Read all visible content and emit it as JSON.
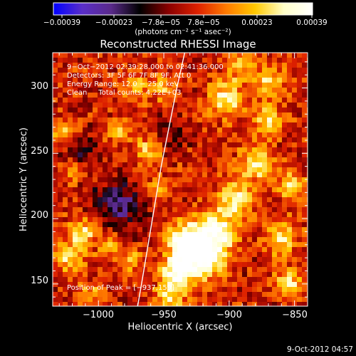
{
  "chart_data": {
    "type": "heatmap",
    "title": "Reconstructed RHESSI Image",
    "xlabel": "Heliocentric X (arcsec)",
    "ylabel": "Heliocentric Y (arcsec)",
    "xlim": [
      -1035,
      -840
    ],
    "ylim": [
      133,
      327
    ],
    "x_ticks": [
      -1000,
      -950,
      -900,
      -850
    ],
    "x_tick_labels": [
      "−1000",
      "−950",
      "−900",
      "−850"
    ],
    "y_ticks": [
      150,
      200,
      250,
      300
    ],
    "y_tick_labels": [
      "150",
      "200",
      "250",
      "300"
    ],
    "colorbar": {
      "range": [
        -0.00039,
        0.00039
      ],
      "tick_labels": [
        "−0.00039",
        "−0.00023",
        "−7.8e−05",
        "7.8e−05",
        "0.00023",
        "0.00039"
      ],
      "unit_label": "(photons cm⁻² s⁻¹ asec⁻²)",
      "colormap": [
        "#0000ff",
        "#5a2ec8",
        "#5a2a8a",
        "#000000",
        "#8a0000",
        "#dd2000",
        "#ff7a00",
        "#ffc800",
        "#ffffc8",
        "#ffffff"
      ]
    },
    "annotations": [
      "9−Oct−2012 02:39:28.000 to 02:41:36.000",
      "Detectors: 3F 5F 6F 7F 8F 9F, Att 0",
      "Energy Range: 12.0 − 25.0 keV",
      "Clean     Total counts: 4.22E+03",
      "Position of Peak = [−937,159]"
    ],
    "peak_position": [
      -937,
      159
    ],
    "limb_curve": [
      [
        -934,
        327
      ],
      [
        -940,
        300
      ],
      [
        -946,
        270
      ],
      [
        -952,
        240
      ],
      [
        -957,
        210
      ],
      [
        -962,
        180
      ],
      [
        -967,
        150
      ],
      [
        -970,
        133
      ]
    ],
    "bright_sources": [
      {
        "x": -922,
        "y": 170,
        "intensity": 1.0,
        "spread": 12
      },
      {
        "x": -940,
        "y": 160,
        "intensity": 0.9,
        "spread": 8
      },
      {
        "x": -910,
        "y": 190,
        "intensity": 0.85,
        "spread": 11
      },
      {
        "x": -935,
        "y": 185,
        "intensity": 0.75,
        "spread": 9
      },
      {
        "x": -895,
        "y": 215,
        "intensity": 0.7,
        "spread": 9
      },
      {
        "x": -880,
        "y": 242,
        "intensity": 0.65,
        "spread": 9
      },
      {
        "x": -870,
        "y": 275,
        "intensity": 0.6,
        "spread": 8
      },
      {
        "x": -868,
        "y": 305,
        "intensity": 0.55,
        "spread": 8
      },
      {
        "x": -902,
        "y": 292,
        "intensity": 0.6,
        "spread": 10
      },
      {
        "x": -890,
        "y": 318,
        "intensity": 0.5,
        "spread": 8
      },
      {
        "x": -860,
        "y": 185,
        "intensity": 0.55,
        "spread": 9
      },
      {
        "x": -852,
        "y": 225,
        "intensity": 0.6,
        "spread": 7
      },
      {
        "x": -853,
        "y": 150,
        "intensity": 0.55,
        "spread": 8
      },
      {
        "x": -1012,
        "y": 190,
        "intensity": 0.65,
        "spread": 8
      },
      {
        "x": -1022,
        "y": 170,
        "intensity": 0.55,
        "spread": 8
      },
      {
        "x": -990,
        "y": 180,
        "intensity": 0.5,
        "spread": 6
      },
      {
        "x": -975,
        "y": 168,
        "intensity": 0.45,
        "spread": 6
      },
      {
        "x": -955,
        "y": 222,
        "intensity": 0.5,
        "spread": 6
      },
      {
        "x": -962,
        "y": 253,
        "intensity": 0.55,
        "spread": 7
      },
      {
        "x": -985,
        "y": 268,
        "intensity": 0.4,
        "spread": 6
      },
      {
        "x": -972,
        "y": 300,
        "intensity": 0.45,
        "spread": 7
      },
      {
        "x": -1025,
        "y": 265,
        "intensity": 0.5,
        "spread": 7
      },
      {
        "x": -1020,
        "y": 237,
        "intensity": 0.4,
        "spread": 6
      },
      {
        "x": -950,
        "y": 300,
        "intensity": 0.45,
        "spread": 7
      },
      {
        "x": -945,
        "y": 140,
        "intensity": 0.6,
        "spread": 8
      },
      {
        "x": -1005,
        "y": 142,
        "intensity": 0.35,
        "spread": 6
      }
    ],
    "dark_sources": [
      {
        "x": -985,
        "y": 210,
        "intensity": -0.55,
        "spread": 14
      },
      {
        "x": -1015,
        "y": 250,
        "intensity": -0.35,
        "spread": 10
      },
      {
        "x": -945,
        "y": 265,
        "intensity": -0.3,
        "spread": 10
      }
    ]
  },
  "footer": {
    "timestamp": "9-Oct-2012 04:57"
  }
}
